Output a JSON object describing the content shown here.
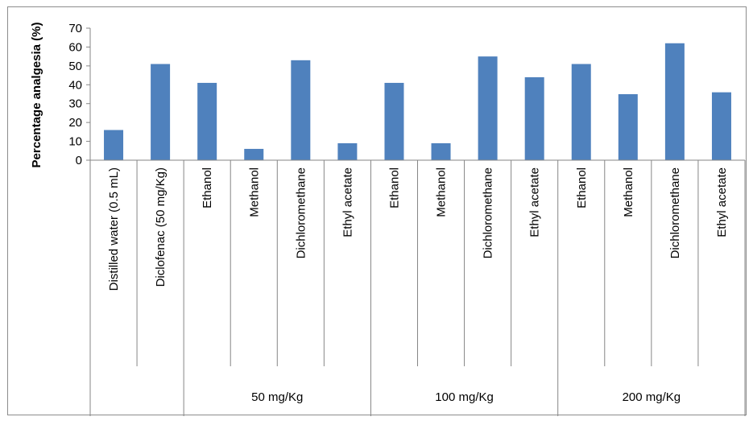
{
  "chart_data": {
    "type": "bar",
    "ylabel": "Percentage analgesia (%)",
    "ylim": [
      0,
      70
    ],
    "yticks": [
      0,
      10,
      20,
      30,
      40,
      50,
      60,
      70
    ],
    "grid": false,
    "legend": "none",
    "bar_color": "#4f81bd",
    "categories": [
      "Distilled water (0.5 mL)",
      "Diclofenac (50 mg/Kg)",
      "Ethanol",
      "Methanol",
      "Dichloromethane",
      "Ethyl acetate",
      "Ethanol",
      "Methanol",
      "Dichloromethane",
      "Ethyl acetate",
      "Ethanol",
      "Methanol",
      "Dichloromethane",
      "Ethyl acetate"
    ],
    "values": [
      16,
      51,
      41,
      6,
      53,
      9,
      41,
      9,
      55,
      44,
      51,
      35,
      62,
      36
    ],
    "groups": [
      {
        "label": "",
        "start": 0,
        "count": 2
      },
      {
        "label": "50 mg/Kg",
        "start": 2,
        "count": 4
      },
      {
        "label": "100 mg/Kg",
        "start": 6,
        "count": 4
      },
      {
        "label": "200 mg/Kg",
        "start": 10,
        "count": 4
      }
    ]
  }
}
